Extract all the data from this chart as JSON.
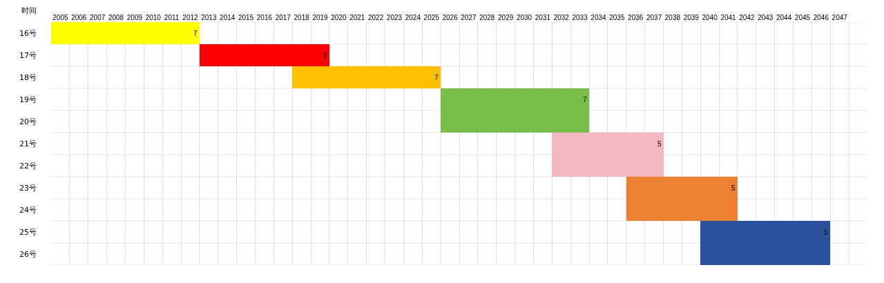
{
  "chart_data": {
    "type": "bar",
    "orientation": "horizontal",
    "ylabel": "时间",
    "categories": [
      "16号",
      "17号",
      "18号",
      "19号",
      "20号",
      "21号",
      "22号",
      "23号",
      "24号",
      "25号",
      "26号"
    ],
    "base": [
      2005,
      2013,
      2018,
      2026,
      2026,
      2032,
      2032,
      2036,
      2036,
      2040,
      2040
    ],
    "values": [
      8,
      7,
      8,
      8,
      8,
      6,
      6,
      6,
      6,
      7,
      7
    ],
    "colors": [
      "#ffff00",
      "#ff0000",
      "#ffc000",
      "#78bd45",
      "#78bd45",
      "#f4b6c0",
      "#f4b6c0",
      "#ed8032",
      "#ed8032",
      "#2d529d",
      "#2d529d"
    ],
    "annotations": [
      {
        "text": "7",
        "x": 2013,
        "y": "16号"
      },
      {
        "text": "6",
        "x": 2020,
        "y": "17号"
      },
      {
        "text": "7",
        "x": 2026,
        "y": "18号"
      },
      {
        "text": "7",
        "x": 2034,
        "y": "19号"
      },
      {
        "text": "5",
        "x": 2038,
        "y": "21号"
      },
      {
        "text": "5",
        "x": 2042,
        "y": "23号"
      },
      {
        "text": "5",
        "x": 2047,
        "y": "25号"
      }
    ],
    "xlim": [
      2005,
      2049
    ],
    "xticks": [
      {
        "value": 2005.5,
        "label": "2005"
      },
      {
        "value": 2006.5,
        "label": "2006"
      },
      {
        "value": 2007.5,
        "label": "2007"
      },
      {
        "value": 2008.5,
        "label": "2008"
      },
      {
        "value": 2009.5,
        "label": "2009"
      },
      {
        "value": 2010.5,
        "label": "2010"
      },
      {
        "value": 2011.5,
        "label": "2011"
      },
      {
        "value": 2012.5,
        "label": "2012"
      },
      {
        "value": 2013.5,
        "label": "2013"
      },
      {
        "value": 2014.5,
        "label": "2014"
      },
      {
        "value": 2015.5,
        "label": "2015"
      },
      {
        "value": 2016.5,
        "label": "2016"
      },
      {
        "value": 2017.5,
        "label": "2017"
      },
      {
        "value": 2018.5,
        "label": "2018"
      },
      {
        "value": 2019.5,
        "label": "2019"
      },
      {
        "value": 2020.5,
        "label": "2020"
      },
      {
        "value": 2021.5,
        "label": "2021"
      },
      {
        "value": 2022.5,
        "label": "2022"
      },
      {
        "value": 2023.5,
        "label": "2023"
      },
      {
        "value": 2024.5,
        "label": "2024"
      },
      {
        "value": 2025.5,
        "label": "2025"
      },
      {
        "value": 2026.5,
        "label": "2026"
      },
      {
        "value": 2027.5,
        "label": "2027"
      },
      {
        "value": 2028.5,
        "label": "2028"
      },
      {
        "value": 2029.5,
        "label": "2029"
      },
      {
        "value": 2030.5,
        "label": "2030"
      },
      {
        "value": 2031.5,
        "label": "2031"
      },
      {
        "value": 2032.5,
        "label": "2032"
      },
      {
        "value": 2033.5,
        "label": "2033"
      },
      {
        "value": 2034.5,
        "label": "2034"
      },
      {
        "value": 2035.5,
        "label": "2035"
      },
      {
        "value": 2036.5,
        "label": "2036"
      },
      {
        "value": 2037.5,
        "label": "2037"
      },
      {
        "value": 2038.5,
        "label": "2038"
      },
      {
        "value": 2039.5,
        "label": "2039"
      },
      {
        "value": 2040.5,
        "label": "2040"
      },
      {
        "value": 2041.5,
        "label": "2041"
      },
      {
        "value": 2042.5,
        "label": "2042"
      },
      {
        "value": 2043.5,
        "label": "2043"
      },
      {
        "value": 2044.5,
        "label": "2044"
      },
      {
        "value": 2045.5,
        "label": "2045"
      },
      {
        "value": 2046.5,
        "label": "2046"
      },
      {
        "value": 2047.5,
        "label": "2047"
      }
    ],
    "grid": true
  }
}
